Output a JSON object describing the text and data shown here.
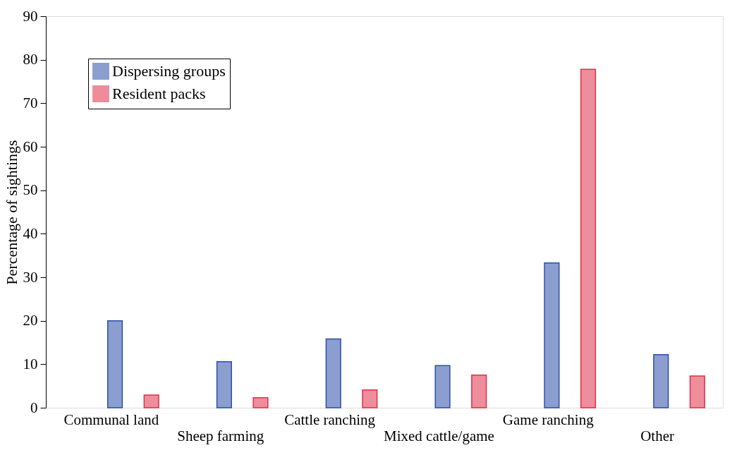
{
  "chart_data": {
    "type": "bar",
    "ylabel": "Percentage of sightings",
    "categories": [
      "Communal land",
      "Sheep farming",
      "Cattle ranching",
      "Mixed cattle/game",
      "Game ranching",
      "Other"
    ],
    "series": [
      {
        "name": "Dispersing groups",
        "color": "#2b4fa8",
        "values": [
          20.0,
          10.6,
          15.8,
          9.7,
          33.3,
          12.2
        ]
      },
      {
        "name": "Resident packs",
        "color": "#e0304a",
        "values": [
          2.9,
          2.3,
          4.1,
          7.5,
          77.8,
          7.3
        ]
      }
    ],
    "ylim": [
      0,
      90
    ],
    "yticks": [
      0,
      10,
      20,
      30,
      40,
      50,
      60,
      70,
      80,
      90
    ],
    "grid": false,
    "legend": "top left"
  }
}
